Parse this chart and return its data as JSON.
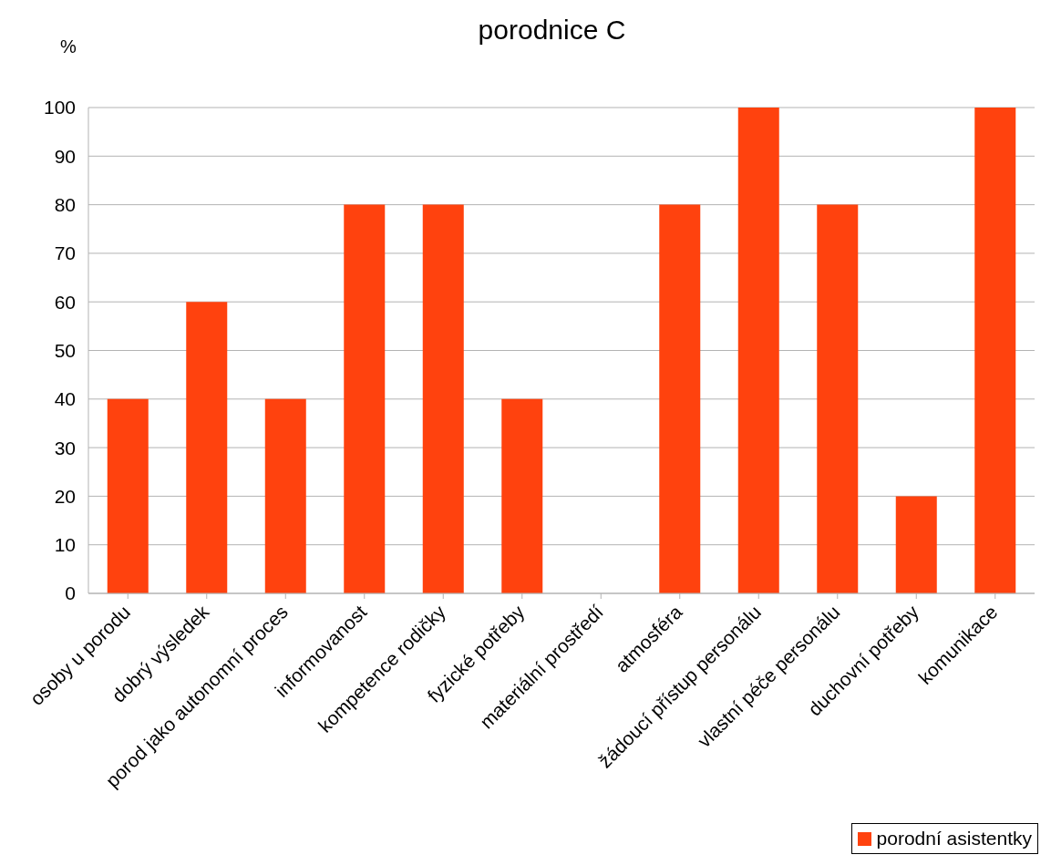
{
  "chart_data": {
    "type": "bar",
    "title": "porodnice C",
    "ylabel": "%",
    "categories": [
      "osoby u porodu",
      "dobrý výsledek",
      "porod jako autonomní proces",
      "informovanost",
      "kompetence rodičky",
      "fyzické potřeby",
      "materiální prostředí",
      "atmosféra",
      "žádoucí přístup personálu",
      "vlastní péče personálu",
      "duchovní potřeby",
      "komunikace"
    ],
    "series": [
      {
        "name": "porodní asistentky",
        "color": "#ff420e",
        "values": [
          40,
          60,
          40,
          80,
          80,
          40,
          0,
          80,
          100,
          80,
          20,
          100
        ]
      }
    ],
    "ylim": [
      0,
      100
    ],
    "yticks": [
      0,
      10,
      20,
      30,
      40,
      50,
      60,
      70,
      80,
      90,
      100
    ],
    "grid": "y",
    "legend": "bottom right"
  }
}
